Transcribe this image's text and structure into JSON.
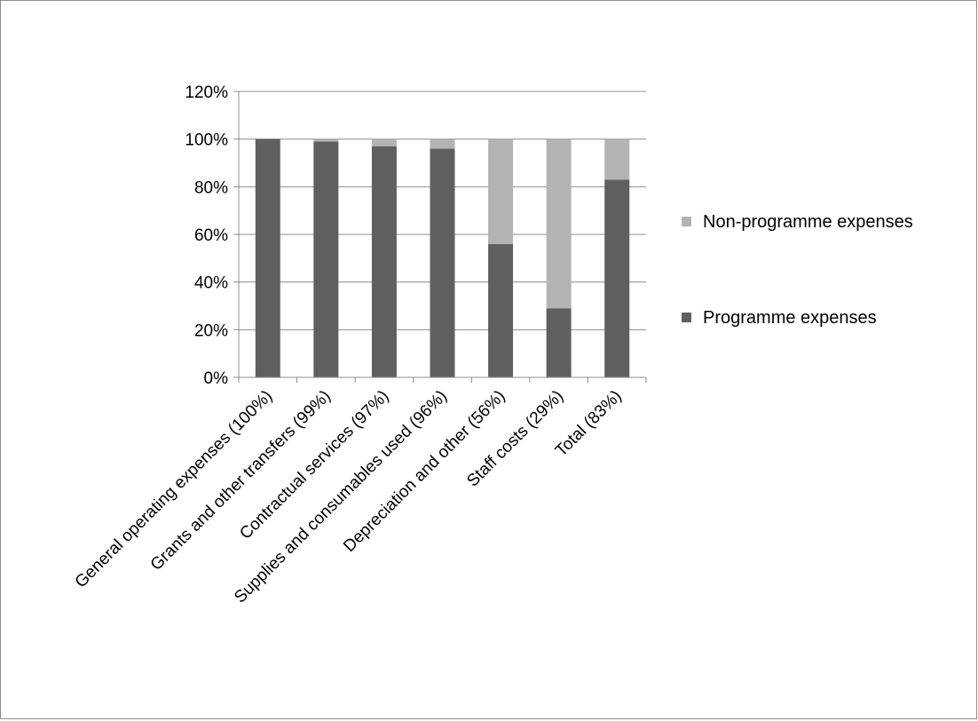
{
  "chart_data": {
    "type": "bar",
    "stacked": true,
    "title": "",
    "xlabel": "",
    "ylabel": "",
    "categories": [
      "General operating expenses (100%)",
      "Grants and other transfers (99%)",
      "Contractual services (97%)",
      "Supplies and consumables used (96%)",
      "Depreciation and other (56%)",
      "Staff costs (29%)",
      "Total (83%)"
    ],
    "series": [
      {
        "name": "Programme expenses",
        "values": [
          100,
          99,
          97,
          96,
          56,
          29,
          83
        ],
        "color": "#5f5f5f"
      },
      {
        "name": "Non-programme expenses",
        "values": [
          0,
          1,
          3,
          4,
          44,
          71,
          17
        ],
        "color": "#b3b3b3"
      }
    ],
    "ylim": [
      0,
      120
    ],
    "yticks": [
      "0%",
      "20%",
      "40%",
      "60%",
      "80%",
      "100%",
      "120%"
    ],
    "grid": true,
    "legend_position": "right",
    "legend_order": [
      "Non-programme expenses",
      "Programme expenses"
    ]
  }
}
